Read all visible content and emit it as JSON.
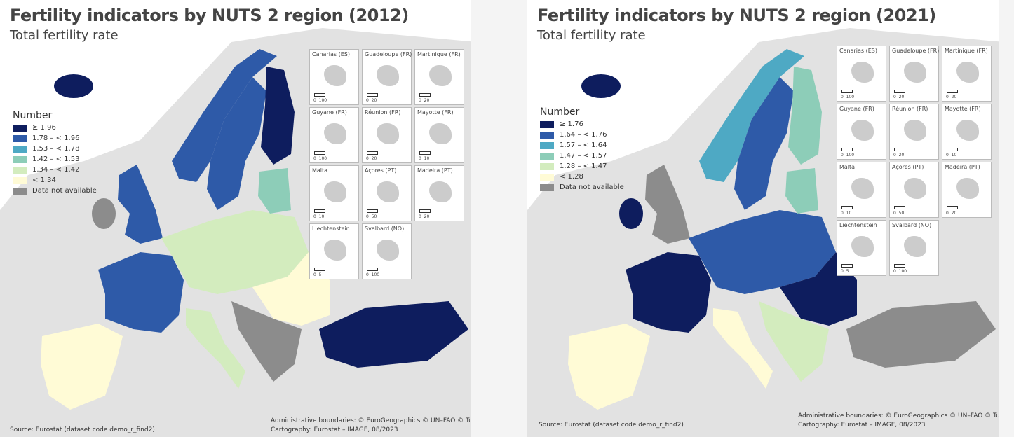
{
  "maps": [
    {
      "title": "Fertility indicators by NUTS 2 region (2012)",
      "subtitle": "Total fertility rate",
      "legend": {
        "title": "Number",
        "items": [
          {
            "label": "≥ 1.96",
            "color": "#0e1d5e"
          },
          {
            "label": "1.78 – < 1.96",
            "color": "#2e5aa8"
          },
          {
            "label": "1.53 – < 1.78",
            "color": "#4ea9c4"
          },
          {
            "label": "1.42 – < 1.53",
            "color": "#8dcdb8"
          },
          {
            "label": "1.34 – < 1.42",
            "color": "#d3ecbe"
          },
          {
            "label": "< 1.34",
            "color": "#fffbd6"
          },
          {
            "label": "Data not available",
            "color": "#8c8c8c"
          }
        ]
      },
      "insets": [
        {
          "name": "Canarias (ES)",
          "scale": "0  100"
        },
        {
          "name": "Guadeloupe (FR)",
          "scale": "0  20"
        },
        {
          "name": "Martinique (FR)",
          "scale": "0  20"
        },
        {
          "name": "Guyane (FR)",
          "scale": "0  100"
        },
        {
          "name": "Réunion (FR)",
          "scale": "0  20"
        },
        {
          "name": "Mayotte (FR)",
          "scale": "0  10"
        },
        {
          "name": "Malta",
          "scale": "0  10"
        },
        {
          "name": "Açores (PT)",
          "scale": "0  50"
        },
        {
          "name": "Madeira (PT)",
          "scale": "0  20"
        },
        {
          "name": "Liechtenstein",
          "scale": "0  5"
        },
        {
          "name": "Svalbard (NO)",
          "scale": "0  100"
        }
      ],
      "source": "Source: Eurostat (dataset code demo_r_find2)",
      "credits": [
        "Administrative boundaries: © EuroGeographics © UN–FAO © Turkstat",
        "Cartography: Eurostat – IMAGE, 08/2023"
      ]
    },
    {
      "title": "Fertility indicators by NUTS 2 region (2021)",
      "subtitle": "Total fertility rate",
      "legend": {
        "title": "Number",
        "items": [
          {
            "label": "≥ 1.76",
            "color": "#0e1d5e"
          },
          {
            "label": "1.64 – < 1.76",
            "color": "#2e5aa8"
          },
          {
            "label": "1.57 – < 1.64",
            "color": "#4ea9c4"
          },
          {
            "label": "1.47 – < 1.57",
            "color": "#8dcdb8"
          },
          {
            "label": "1.28 – < 1.47",
            "color": "#d3ecbe"
          },
          {
            "label": "< 1.28",
            "color": "#fffbd6"
          },
          {
            "label": "Data not available",
            "color": "#8c8c8c"
          }
        ]
      },
      "insets": [
        {
          "name": "Canarias (ES)",
          "scale": "0  100"
        },
        {
          "name": "Guadeloupe (FR)",
          "scale": "0  20"
        },
        {
          "name": "Martinique (FR)",
          "scale": "0  20"
        },
        {
          "name": "Guyane (FR)",
          "scale": "0  100"
        },
        {
          "name": "Réunion (FR)",
          "scale": "0  20"
        },
        {
          "name": "Mayotte (FR)",
          "scale": "0  10"
        },
        {
          "name": "Malta",
          "scale": "0  10"
        },
        {
          "name": "Açores (PT)",
          "scale": "0  50"
        },
        {
          "name": "Madeira (PT)",
          "scale": "0  20"
        },
        {
          "name": "Liechtenstein",
          "scale": "0  5"
        },
        {
          "name": "Svalbard (NO)",
          "scale": "0  100"
        }
      ],
      "source": "Source: Eurostat (dataset code demo_r_find2)",
      "credits": [
        "Administrative boundaries: © EuroGeographics © UN–FAO © Turkstat",
        "Cartography: Eurostat – IMAGE, 08/2023"
      ]
    }
  ]
}
